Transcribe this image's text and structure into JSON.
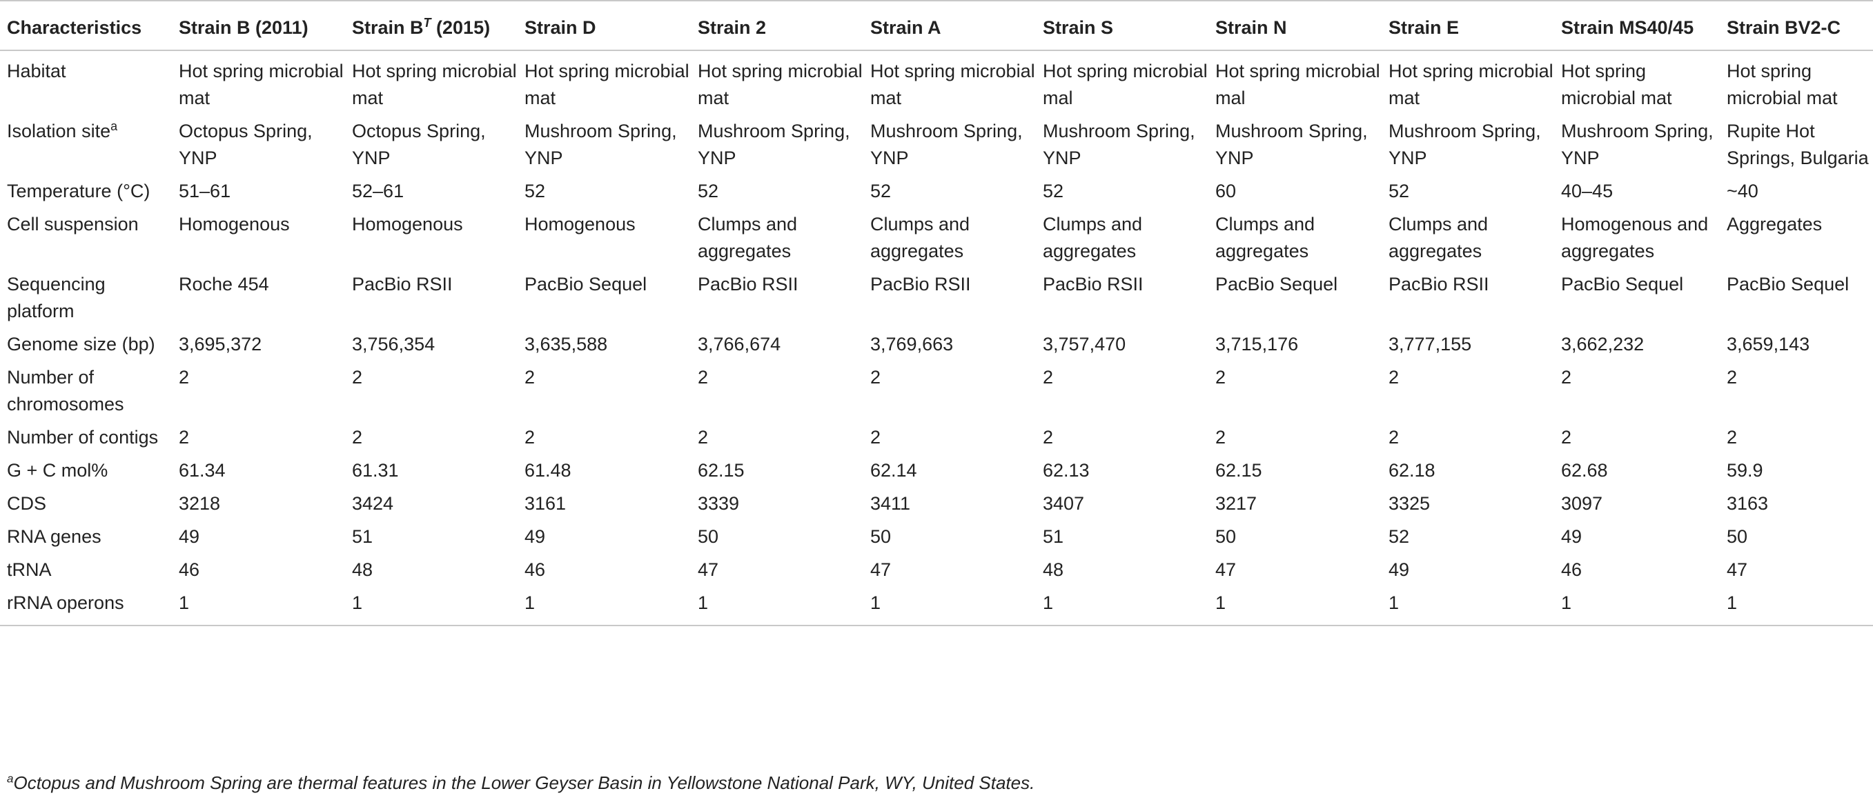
{
  "table": {
    "headers": [
      {
        "text": "Characteristics",
        "sup": ""
      },
      {
        "text": "Strain B (2011)",
        "sup": ""
      },
      {
        "text": "Strain B",
        "sup": "T",
        "suffix": " (2015)"
      },
      {
        "text": "Strain D",
        "sup": ""
      },
      {
        "text": "Strain 2",
        "sup": ""
      },
      {
        "text": "Strain A",
        "sup": ""
      },
      {
        "text": "Strain S",
        "sup": ""
      },
      {
        "text": "Strain N",
        "sup": ""
      },
      {
        "text": "Strain E",
        "sup": ""
      },
      {
        "text": "Strain MS40/45",
        "sup": ""
      },
      {
        "text": "Strain BV2-C",
        "sup": ""
      }
    ],
    "rows": [
      {
        "label": "Habitat",
        "label_sup": "",
        "values": [
          "Hot spring microbial mat",
          "Hot spring microbial mat",
          "Hot spring microbial mat",
          "Hot spring microbial mat",
          "Hot spring microbial mat",
          "Hot spring microbial mal",
          "Hot spring microbial mal",
          "Hot spring microbial mat",
          "Hot spring microbial mat",
          "Hot spring microbial mat"
        ]
      },
      {
        "label": "Isolation site",
        "label_sup": "a",
        "values": [
          "Octopus Spring, YNP",
          "Octopus Spring, YNP",
          "Mushroom Spring, YNP",
          "Mushroom Spring, YNP",
          "Mushroom Spring, YNP",
          "Mushroom Spring, YNP",
          "Mushroom Spring, YNP",
          "Mushroom Spring, YNP",
          "Mushroom Spring, YNP",
          "Rupite Hot Springs, Bulgaria"
        ]
      },
      {
        "label": "Temperature (°C)",
        "label_sup": "",
        "values": [
          "51–61",
          "52–61",
          "52",
          "52",
          "52",
          "52",
          "60",
          "52",
          "40–45",
          "~40"
        ]
      },
      {
        "label": "Cell suspension",
        "label_sup": "",
        "values": [
          "Homogenous",
          "Homogenous",
          "Homogenous",
          "Clumps and aggregates",
          "Clumps and aggregates",
          "Clumps and aggregates",
          "Clumps and aggregates",
          "Clumps and aggregates",
          "Homogenous and aggregates",
          "Aggregates"
        ]
      },
      {
        "label": "Sequencing platform",
        "label_sup": "",
        "values": [
          "Roche 454",
          "PacBio RSII",
          "PacBio Sequel",
          "PacBio RSII",
          "PacBio RSII",
          "PacBio RSII",
          "PacBio Sequel",
          "PacBio RSII",
          "PacBio Sequel",
          "PacBio Sequel"
        ]
      },
      {
        "label": "Genome size (bp)",
        "label_sup": "",
        "values": [
          "3,695,372",
          "3,756,354",
          "3,635,588",
          "3,766,674",
          "3,769,663",
          "3,757,470",
          "3,715,176",
          "3,777,155",
          "3,662,232",
          "3,659,143"
        ]
      },
      {
        "label": "Number of chromosomes",
        "label_sup": "",
        "values": [
          "2",
          "2",
          "2",
          "2",
          "2",
          "2",
          "2",
          "2",
          "2",
          "2"
        ]
      },
      {
        "label": "Number of contigs",
        "label_sup": "",
        "values": [
          "2",
          "2",
          "2",
          "2",
          "2",
          "2",
          "2",
          "2",
          "2",
          "2"
        ]
      },
      {
        "label": "G + C mol%",
        "label_sup": "",
        "values": [
          "61.34",
          "61.31",
          "61.48",
          "62.15",
          "62.14",
          "62.13",
          "62.15",
          "62.18",
          "62.68",
          "59.9"
        ]
      },
      {
        "label": "CDS",
        "label_sup": "",
        "values": [
          "3218",
          "3424",
          "3161",
          "3339",
          "3411",
          "3407",
          "3217",
          "3325",
          "3097",
          "3163"
        ]
      },
      {
        "label": "RNA genes",
        "label_sup": "",
        "values": [
          "49",
          "51",
          "49",
          "50",
          "50",
          "51",
          "50",
          "52",
          "49",
          "50"
        ]
      },
      {
        "label": "tRNA",
        "label_sup": "",
        "values": [
          "46",
          "48",
          "46",
          "47",
          "47",
          "48",
          "47",
          "49",
          "46",
          "47"
        ]
      },
      {
        "label": "rRNA operons",
        "label_sup": "",
        "values": [
          "1",
          "1",
          "1",
          "1",
          "1",
          "1",
          "1",
          "1",
          "1",
          "1"
        ]
      }
    ]
  },
  "footnote": {
    "marker": "a",
    "text": "Octopus and Mushroom Spring are thermal features in the Lower Geyser Basin in Yellowstone National Park, WY, United States."
  }
}
